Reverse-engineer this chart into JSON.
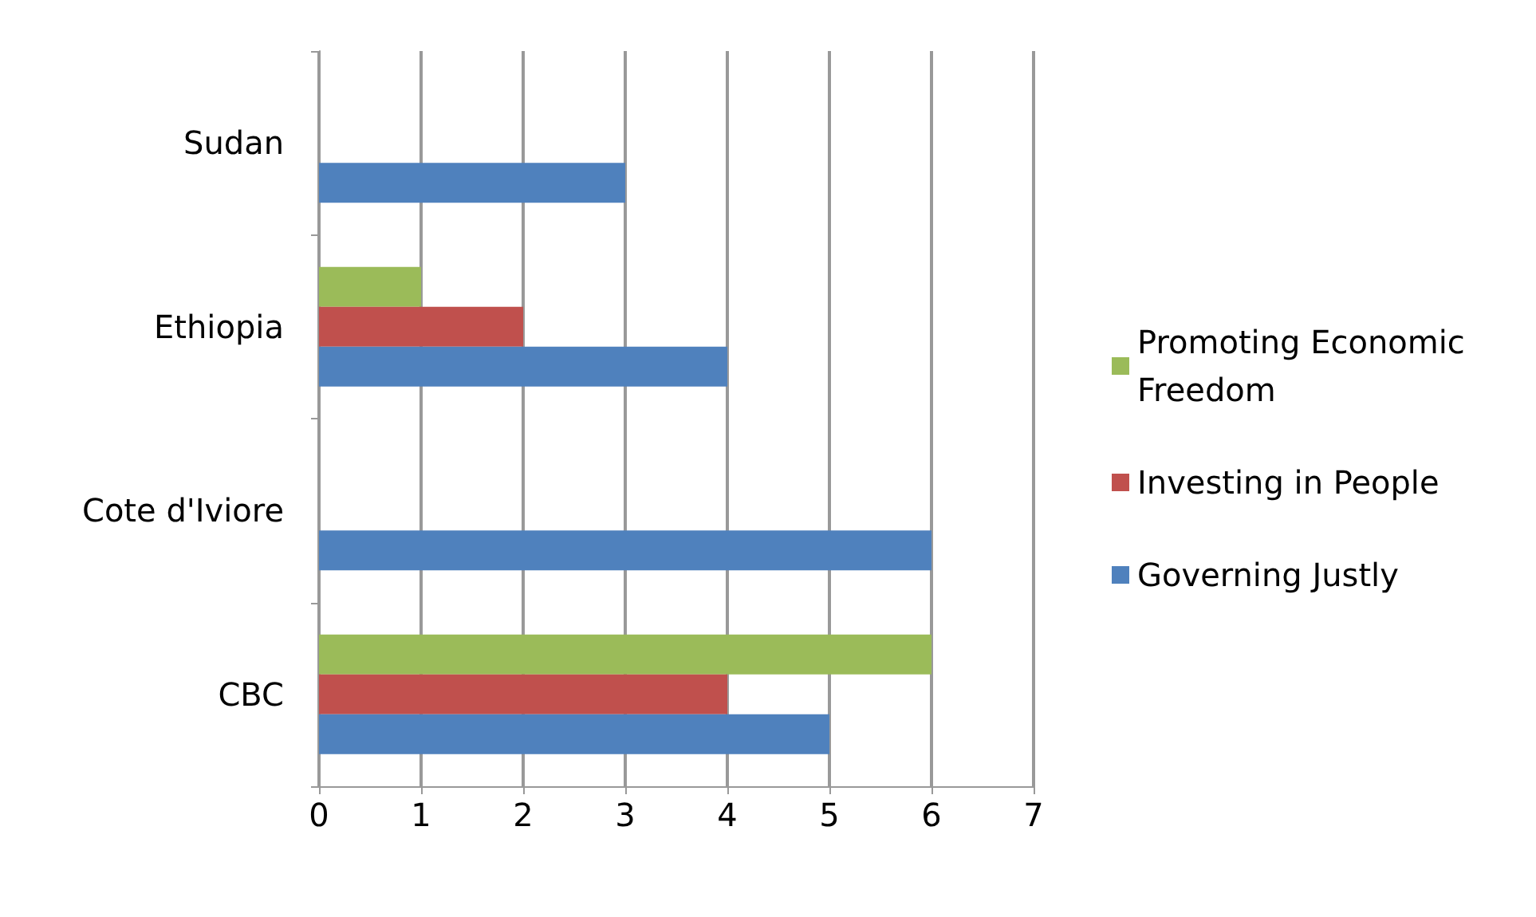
{
  "chart_data": {
    "type": "bar",
    "orientation": "horizontal",
    "categories": [
      "Sudan",
      "Ethiopia",
      "Cote d'Iviore",
      "CBC"
    ],
    "series": [
      {
        "name": "Promoting Economic Freedom",
        "color": "#9bbb59",
        "values": [
          null,
          1,
          null,
          6
        ]
      },
      {
        "name": "Investing in People",
        "color": "#c0504d",
        "values": [
          null,
          2,
          null,
          4
        ]
      },
      {
        "name": "Governing Justly",
        "color": "#4f81bd",
        "values": [
          3,
          4,
          6,
          5
        ]
      }
    ],
    "xlim": [
      0,
      7
    ],
    "xticks": [
      0,
      1,
      2,
      3,
      4,
      5,
      6,
      7
    ],
    "grid": "x",
    "legend": "right"
  }
}
